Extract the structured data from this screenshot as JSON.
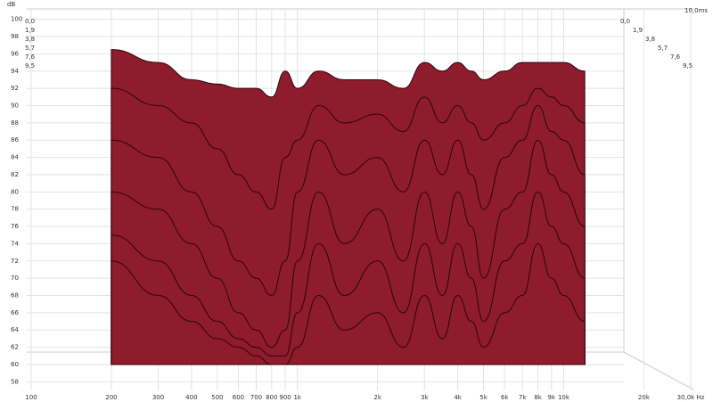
{
  "chart_data": {
    "type": "waterfall",
    "y_axis_label": "dB",
    "depth_end_label": "10,0ms",
    "xscale": "log",
    "xlim": [
      100,
      30000
    ],
    "xticks": [
      100,
      200,
      300,
      400,
      500,
      600,
      700,
      800,
      900,
      {
        "value": 1000,
        "label": "1k"
      },
      {
        "value": 2000,
        "label": "2k"
      },
      {
        "value": 3000,
        "label": "3k"
      },
      {
        "value": 4000,
        "label": "4k"
      },
      {
        "value": 5000,
        "label": "5k"
      },
      {
        "value": 6000,
        "label": "6k"
      },
      {
        "value": 7000,
        "label": "7k"
      },
      {
        "value": 8000,
        "label": "8k"
      },
      {
        "value": 9000,
        "label": "9k"
      },
      {
        "value": 10000,
        "label": "10k"
      },
      {
        "value": 20000,
        "label": "20k"
      },
      {
        "value": 30000,
        "label": "30,0k Hz"
      }
    ],
    "ylim": [
      57,
      101
    ],
    "yticks": [
      58,
      60,
      62,
      64,
      66,
      68,
      70,
      72,
      74,
      76,
      78,
      80,
      82,
      84,
      86,
      88,
      90,
      92,
      94,
      96,
      98,
      100
    ],
    "grid": true,
    "floor": 60,
    "x": [
      200,
      300,
      400,
      500,
      600,
      700,
      800,
      900,
      1000,
      1200,
      1500,
      2000,
      2500,
      3000,
      3500,
      4000,
      4500,
      5000,
      6000,
      7000,
      8000,
      9000,
      10000,
      12000
    ],
    "series": [
      {
        "name": "0,0",
        "color": "#8e1c2c",
        "values": [
          96.5,
          95,
          93,
          92.5,
          92,
          92,
          91,
          94,
          92,
          94,
          93,
          93,
          92,
          95,
          94,
          95,
          94,
          93,
          94,
          95,
          95,
          95,
          95,
          94
        ]
      },
      {
        "name": "1,9",
        "color": "#8e1c2c",
        "values": [
          92,
          90,
          88,
          85,
          82,
          80,
          78,
          84,
          86,
          90,
          88,
          89,
          87,
          91,
          88,
          90,
          88,
          86,
          88,
          90,
          92,
          91,
          90,
          88
        ]
      },
      {
        "name": "3,8",
        "color": "#8e1c2c",
        "values": [
          86,
          84,
          80,
          76,
          72,
          70,
          68,
          72,
          80,
          86,
          82,
          84,
          80,
          86,
          82,
          86,
          82,
          78,
          84,
          86,
          90,
          87,
          86,
          82
        ]
      },
      {
        "name": "5,7",
        "color": "#8e1c2c",
        "values": [
          80,
          78,
          74,
          70,
          66,
          64,
          62,
          64,
          72,
          80,
          74,
          78,
          72,
          80,
          74,
          80,
          76,
          70,
          78,
          80,
          86,
          82,
          80,
          76
        ]
      },
      {
        "name": "7,6",
        "color": "#8e1c2c",
        "values": [
          75,
          72,
          68,
          65,
          63,
          62,
          61,
          61,
          66,
          74,
          68,
          72,
          66,
          74,
          68,
          74,
          70,
          65,
          72,
          74,
          80,
          76,
          74,
          70
        ]
      },
      {
        "name": "9,5",
        "color": "#8e1c2c",
        "values": [
          72,
          68,
          65,
          63,
          62,
          61,
          60,
          60,
          62,
          68,
          64,
          66,
          62,
          68,
          63,
          68,
          65,
          62,
          66,
          68,
          74,
          70,
          68,
          65
        ]
      }
    ]
  }
}
